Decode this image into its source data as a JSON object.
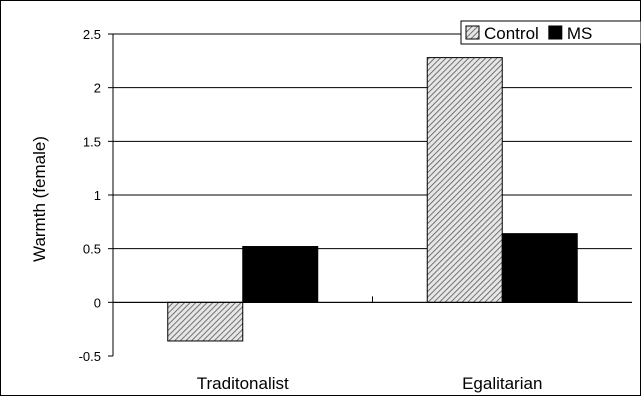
{
  "chart_data": {
    "type": "bar",
    "title": "",
    "xlabel": "",
    "ylabel": "Warmth (female)",
    "categories": [
      "Traditonalist",
      "Egalitarian"
    ],
    "series": [
      {
        "name": "Control",
        "values": [
          -0.36,
          2.28
        ],
        "color": "#9a9a9a",
        "pattern": "diagonal-hatch"
      },
      {
        "name": "MS",
        "values": [
          0.52,
          0.64
        ],
        "color": "#000000",
        "pattern": "solid"
      }
    ],
    "ylim": [
      -0.5,
      2.5
    ],
    "yticks": [
      -0.5,
      0,
      0.5,
      1,
      1.5,
      2,
      2.5
    ],
    "ytick_labels": [
      "-0.5",
      "0",
      "0.5",
      "1",
      "1.5",
      "2",
      "2.5"
    ],
    "grid": true,
    "legend": "top-right"
  }
}
